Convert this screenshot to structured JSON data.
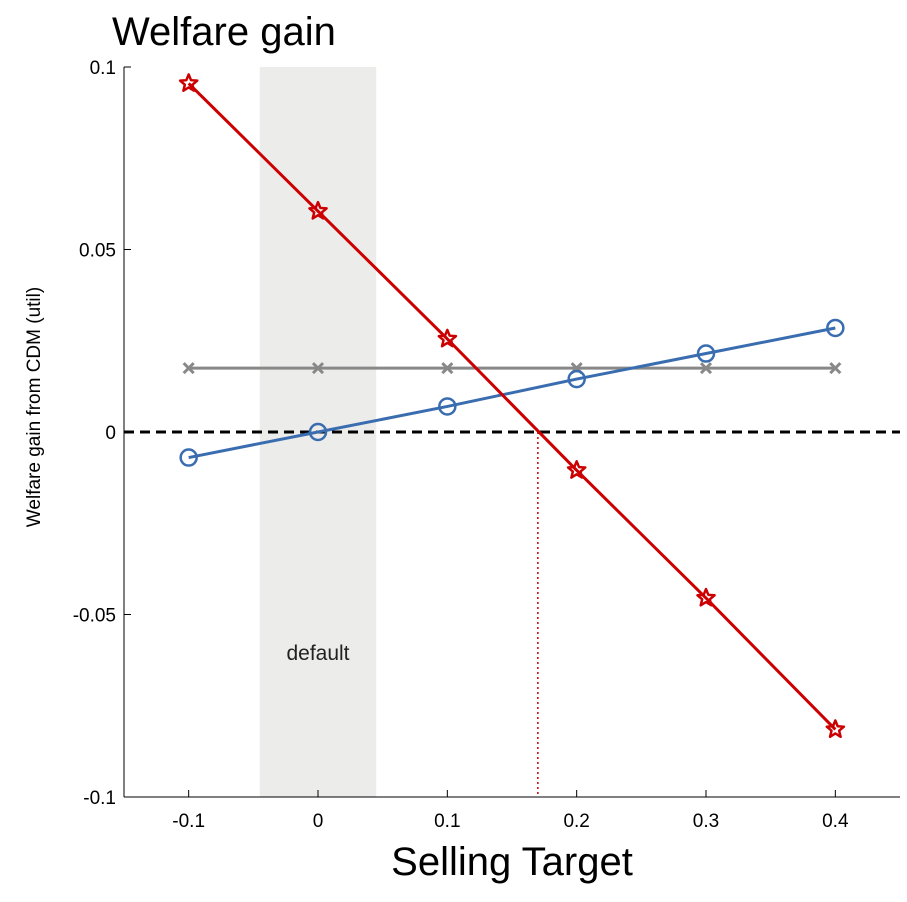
{
  "chart_data": {
    "type": "line",
    "title": "Welfare gain",
    "xlabel": "Selling Target",
    "ylabel": "Welfare gain from CDM (util)",
    "x": [
      -0.1,
      0,
      0.1,
      0.2,
      0.3,
      0.4
    ],
    "xlim": [
      -0.15,
      0.45
    ],
    "ylim": [
      -0.1,
      0.1
    ],
    "xticks": [
      "-0.1",
      "0",
      "0.1",
      "0.2",
      "0.3",
      "0.4"
    ],
    "yticks": [
      "-0.1",
      "-0.05",
      "0",
      "0.05",
      "0.1"
    ],
    "xtick_values": [
      -0.1,
      0,
      0.1,
      0.2,
      0.3,
      0.4
    ],
    "ytick_values": [
      -0.1,
      -0.05,
      0,
      0.05,
      0.1
    ],
    "series": [
      {
        "color": "#cc0000",
        "marker": "star",
        "values": [
          0.0955,
          0.0605,
          0.0255,
          -0.0105,
          -0.0455,
          -0.0815
        ]
      },
      {
        "color": "#3a6db0",
        "marker": "circle",
        "values": [
          -0.007,
          0.0,
          0.007,
          0.0145,
          0.0215,
          0.0285
        ]
      },
      {
        "color": "#888888",
        "marker": "x",
        "values": [
          0.0175,
          0.0175,
          0.0175,
          0.0175,
          0.0175,
          0.0175
        ]
      }
    ],
    "reference_line": {
      "y": 0,
      "style": "dashed",
      "color": "#000000"
    },
    "crossing_line": {
      "x": 0.17,
      "style": "dotted",
      "color": "#cc0000"
    },
    "shaded_region": {
      "x_range": [
        -0.045,
        0.045
      ],
      "color": "#ececeb",
      "label": "default"
    },
    "grid": false,
    "legend": "none"
  }
}
